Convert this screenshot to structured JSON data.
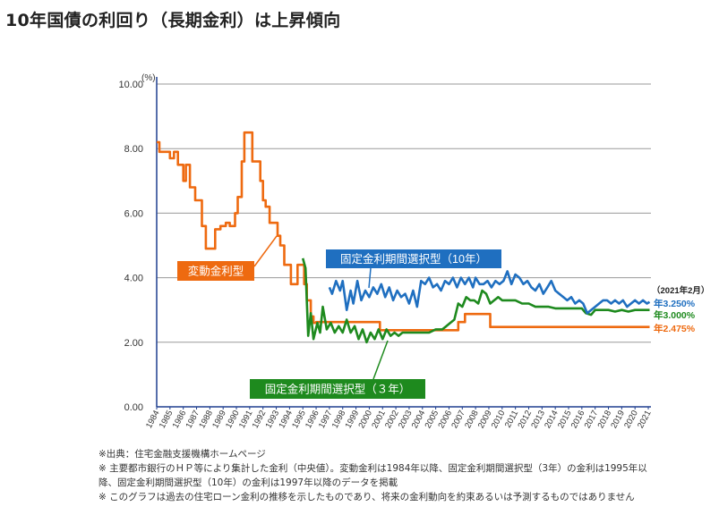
{
  "page": {
    "title": "10年国債の利回り（長期金利）は上昇傾向"
  },
  "colors": {
    "variable": "#ee6a10",
    "fixed10": "#1f6fc0",
    "fixed3": "#1e8a1e",
    "axis": "#1f3f8f"
  },
  "chart_data": {
    "type": "line",
    "title": "",
    "ylabel": "(%)",
    "ylim": [
      0,
      10
    ],
    "xlim": [
      1984,
      2021.2
    ],
    "y_ticks": [
      "0.00",
      "2.00",
      "4.00",
      "6.00",
      "8.00",
      "10.00"
    ],
    "x_ticks": [
      "1984",
      "1985",
      "1986",
      "1987",
      "1988",
      "1989",
      "1990",
      "1991",
      "1992",
      "1993",
      "1994",
      "1995",
      "1996",
      "1997",
      "1998",
      "1999",
      "2000",
      "2001",
      "2002",
      "2003",
      "2004",
      "2005",
      "2006",
      "2007",
      "2008",
      "2009",
      "2010",
      "2011",
      "2012",
      "2013",
      "2014",
      "2015",
      "2016",
      "2017",
      "2018",
      "2019",
      "2020",
      "2021"
    ],
    "grid": true,
    "date_annotation": "（2021年2月）",
    "series": [
      {
        "name": "変動金利型",
        "key": "variable",
        "end_label": "年2.475%",
        "points": [
          [
            1984,
            8.2
          ],
          [
            1984.2,
            7.9
          ],
          [
            1984.6,
            7.9
          ],
          [
            1985,
            7.7
          ],
          [
            1985.3,
            7.9
          ],
          [
            1985.6,
            7.5
          ],
          [
            1986,
            7.0
          ],
          [
            1986.2,
            7.5
          ],
          [
            1986.5,
            6.8
          ],
          [
            1986.9,
            6.4
          ],
          [
            1987.4,
            5.6
          ],
          [
            1987.7,
            4.9
          ],
          [
            1988.1,
            4.9
          ],
          [
            1988.4,
            5.5
          ],
          [
            1988.8,
            5.6
          ],
          [
            1989.2,
            5.7
          ],
          [
            1989.5,
            5.6
          ],
          [
            1989.9,
            6.0
          ],
          [
            1990.1,
            6.5
          ],
          [
            1990.4,
            7.6
          ],
          [
            1990.6,
            8.5
          ],
          [
            1990.9,
            8.5
          ],
          [
            1991.2,
            7.6
          ],
          [
            1991.6,
            7.6
          ],
          [
            1991.8,
            7.0
          ],
          [
            1992.0,
            6.4
          ],
          [
            1992.2,
            6.2
          ],
          [
            1992.5,
            5.7
          ],
          [
            1992.8,
            5.7
          ],
          [
            1993.1,
            5.3
          ],
          [
            1993.3,
            5.0
          ],
          [
            1993.6,
            4.4
          ],
          [
            1993.9,
            4.4
          ],
          [
            1994.1,
            3.8
          ],
          [
            1994.4,
            3.8
          ],
          [
            1994.6,
            4.4
          ],
          [
            1994.9,
            4.4
          ],
          [
            1995.1,
            3.8
          ],
          [
            1995.3,
            3.3
          ],
          [
            1995.6,
            2.8
          ],
          [
            1995.8,
            2.6
          ],
          [
            1996,
            2.625
          ],
          [
            2000.5,
            2.625
          ],
          [
            2000.8,
            2.375
          ],
          [
            2006.5,
            2.375
          ],
          [
            2006.7,
            2.625
          ],
          [
            2007.2,
            2.875
          ],
          [
            2009,
            2.875
          ],
          [
            2009.1,
            2.475
          ],
          [
            2021.1,
            2.475
          ]
        ]
      },
      {
        "name": "固定金利期間選択型（10年）",
        "key": "fixed10",
        "end_label": "年3.250%",
        "points": [
          [
            1997,
            3.7
          ],
          [
            1997.2,
            3.5
          ],
          [
            1997.5,
            3.9
          ],
          [
            1997.8,
            3.6
          ],
          [
            1998.0,
            3.9
          ],
          [
            1998.3,
            3.0
          ],
          [
            1998.6,
            3.6
          ],
          [
            1998.8,
            3.2
          ],
          [
            1999.1,
            3.9
          ],
          [
            1999.4,
            3.3
          ],
          [
            1999.7,
            3.6
          ],
          [
            2000.0,
            3.4
          ],
          [
            2000.3,
            3.7
          ],
          [
            2000.6,
            3.5
          ],
          [
            2000.9,
            3.8
          ],
          [
            2001.2,
            3.4
          ],
          [
            2001.5,
            3.7
          ],
          [
            2001.8,
            3.3
          ],
          [
            2002.1,
            3.6
          ],
          [
            2002.4,
            3.4
          ],
          [
            2002.7,
            3.5
          ],
          [
            2003.0,
            3.2
          ],
          [
            2003.3,
            3.6
          ],
          [
            2003.6,
            3.1
          ],
          [
            2003.9,
            3.9
          ],
          [
            2004.2,
            3.8
          ],
          [
            2004.5,
            4.0
          ],
          [
            2004.8,
            3.7
          ],
          [
            2005.1,
            3.8
          ],
          [
            2005.4,
            3.6
          ],
          [
            2005.7,
            3.9
          ],
          [
            2006.0,
            3.8
          ],
          [
            2006.3,
            4.0
          ],
          [
            2006.6,
            3.7
          ],
          [
            2006.9,
            4.0
          ],
          [
            2007.2,
            3.8
          ],
          [
            2007.5,
            4.0
          ],
          [
            2007.8,
            3.7
          ],
          [
            2008.0,
            4.0
          ],
          [
            2008.3,
            3.8
          ],
          [
            2008.6,
            3.8
          ],
          [
            2008.9,
            3.9
          ],
          [
            2009.2,
            3.7
          ],
          [
            2009.5,
            3.9
          ],
          [
            2009.8,
            3.8
          ],
          [
            2010.1,
            3.9
          ],
          [
            2010.4,
            4.2
          ],
          [
            2010.7,
            3.8
          ],
          [
            2011.0,
            4.1
          ],
          [
            2011.3,
            4.0
          ],
          [
            2011.6,
            3.8
          ],
          [
            2011.9,
            3.9
          ],
          [
            2012.2,
            3.7
          ],
          [
            2012.5,
            3.6
          ],
          [
            2012.8,
            3.8
          ],
          [
            2013.1,
            3.5
          ],
          [
            2013.4,
            3.7
          ],
          [
            2013.7,
            3.9
          ],
          [
            2014.0,
            3.6
          ],
          [
            2014.3,
            3.5
          ],
          [
            2014.6,
            3.4
          ],
          [
            2014.9,
            3.3
          ],
          [
            2015.2,
            3.4
          ],
          [
            2015.5,
            3.2
          ],
          [
            2015.8,
            3.3
          ],
          [
            2016.1,
            3.2
          ],
          [
            2016.4,
            2.9
          ],
          [
            2016.7,
            3.0
          ],
          [
            2017.0,
            3.1
          ],
          [
            2017.3,
            3.2
          ],
          [
            2017.6,
            3.3
          ],
          [
            2017.9,
            3.3
          ],
          [
            2018.2,
            3.2
          ],
          [
            2018.5,
            3.3
          ],
          [
            2018.8,
            3.2
          ],
          [
            2019.1,
            3.3
          ],
          [
            2019.4,
            3.1
          ],
          [
            2019.7,
            3.2
          ],
          [
            2020.0,
            3.3
          ],
          [
            2020.3,
            3.2
          ],
          [
            2020.6,
            3.3
          ],
          [
            2020.9,
            3.2
          ],
          [
            2021.1,
            3.25
          ]
        ]
      },
      {
        "name": "固定金利期間選択型（３年）",
        "key": "fixed3",
        "end_label": "年3.000%",
        "points": [
          [
            1995,
            4.6
          ],
          [
            1995.2,
            4.3
          ],
          [
            1995.4,
            2.2
          ],
          [
            1995.6,
            2.9
          ],
          [
            1995.8,
            2.1
          ],
          [
            1996.1,
            2.6
          ],
          [
            1996.3,
            2.3
          ],
          [
            1996.5,
            3.1
          ],
          [
            1996.8,
            2.4
          ],
          [
            1997.1,
            2.6
          ],
          [
            1997.4,
            2.3
          ],
          [
            1997.7,
            2.5
          ],
          [
            1998.0,
            2.3
          ],
          [
            1998.3,
            2.7
          ],
          [
            1998.6,
            2.3
          ],
          [
            1998.9,
            2.5
          ],
          [
            1999.2,
            2.1
          ],
          [
            1999.5,
            2.4
          ],
          [
            1999.8,
            2.0
          ],
          [
            2000.1,
            2.3
          ],
          [
            2000.4,
            2.1
          ],
          [
            2000.7,
            2.4
          ],
          [
            2001.0,
            2.1
          ],
          [
            2001.3,
            2.4
          ],
          [
            2001.6,
            2.2
          ],
          [
            2001.9,
            2.3
          ],
          [
            2002.2,
            2.2
          ],
          [
            2002.5,
            2.3
          ],
          [
            2003.0,
            2.3
          ],
          [
            2003.5,
            2.3
          ],
          [
            2004.0,
            2.3
          ],
          [
            2004.5,
            2.3
          ],
          [
            2005.0,
            2.4
          ],
          [
            2005.5,
            2.4
          ],
          [
            2005.8,
            2.5
          ],
          [
            2006.1,
            2.6
          ],
          [
            2006.4,
            2.7
          ],
          [
            2006.7,
            3.2
          ],
          [
            2007.0,
            3.1
          ],
          [
            2007.3,
            3.4
          ],
          [
            2007.6,
            3.3
          ],
          [
            2007.9,
            3.3
          ],
          [
            2008.2,
            3.2
          ],
          [
            2008.5,
            3.6
          ],
          [
            2008.8,
            3.5
          ],
          [
            2009.1,
            3.2
          ],
          [
            2009.4,
            3.3
          ],
          [
            2009.7,
            3.4
          ],
          [
            2010.0,
            3.3
          ],
          [
            2010.5,
            3.3
          ],
          [
            2011.0,
            3.3
          ],
          [
            2011.5,
            3.2
          ],
          [
            2012.0,
            3.2
          ],
          [
            2012.5,
            3.1
          ],
          [
            2013.0,
            3.1
          ],
          [
            2013.5,
            3.1
          ],
          [
            2014.0,
            3.05
          ],
          [
            2015.0,
            3.05
          ],
          [
            2016.0,
            3.05
          ],
          [
            2016.3,
            2.9
          ],
          [
            2016.7,
            2.85
          ],
          [
            2017.0,
            3.0
          ],
          [
            2017.5,
            3.0
          ],
          [
            2018.0,
            3.0
          ],
          [
            2018.5,
            2.95
          ],
          [
            2019.0,
            3.0
          ],
          [
            2019.5,
            2.95
          ],
          [
            2020.0,
            3.0
          ],
          [
            2020.5,
            3.0
          ],
          [
            2021.1,
            3.0
          ]
        ]
      }
    ]
  },
  "notes": [
    "※出典：住宅金融支援機構ホームページ",
    "※ 主要都市銀行のＨＰ等により集計した金利（中央値）。変動金利は1984年以降、固定金利期間選択型（3年）の金利は1995年以",
    "降、固定金利期間選択型（10年）の金利は1997年以降のデータを掲載",
    "※ このグラフは過去の住宅ローン金利の推移を示したものであり、将来の金利動向を約束あるいは予測するものではありません"
  ]
}
